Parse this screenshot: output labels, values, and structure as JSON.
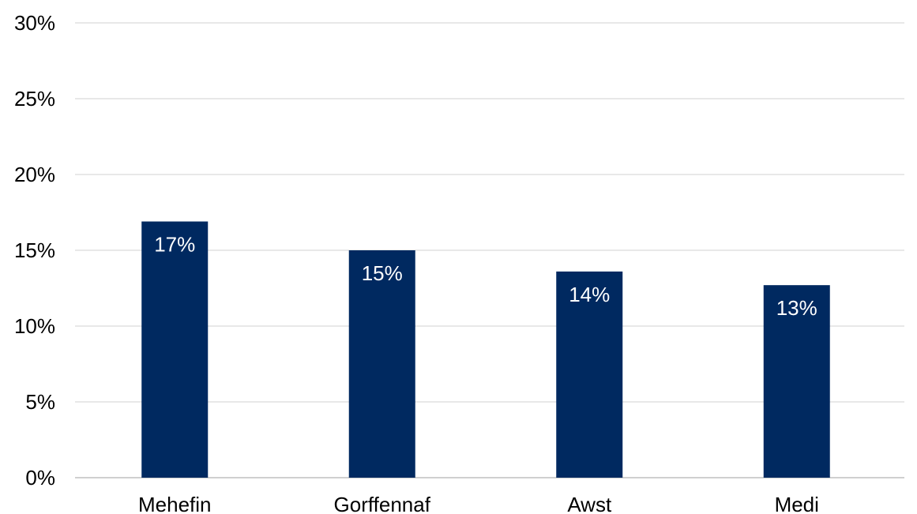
{
  "chart_data": {
    "type": "bar",
    "categories": [
      "Mehefin",
      "Gorffennaf",
      "Awst",
      "Medi"
    ],
    "values": [
      16.9,
      15.0,
      13.6,
      12.7
    ],
    "data_labels": [
      "17%",
      "15%",
      "14%",
      "13%"
    ],
    "ylim": [
      0,
      30
    ],
    "y_ticks": [
      0,
      5,
      10,
      15,
      20,
      25,
      30
    ],
    "y_tick_labels": [
      "0%",
      "5%",
      "10%",
      "15%",
      "20%",
      "25%",
      "30%"
    ],
    "grid": true,
    "legend": "none",
    "colors": {
      "bar": "#002960",
      "grid": "#d9d9d9"
    }
  }
}
